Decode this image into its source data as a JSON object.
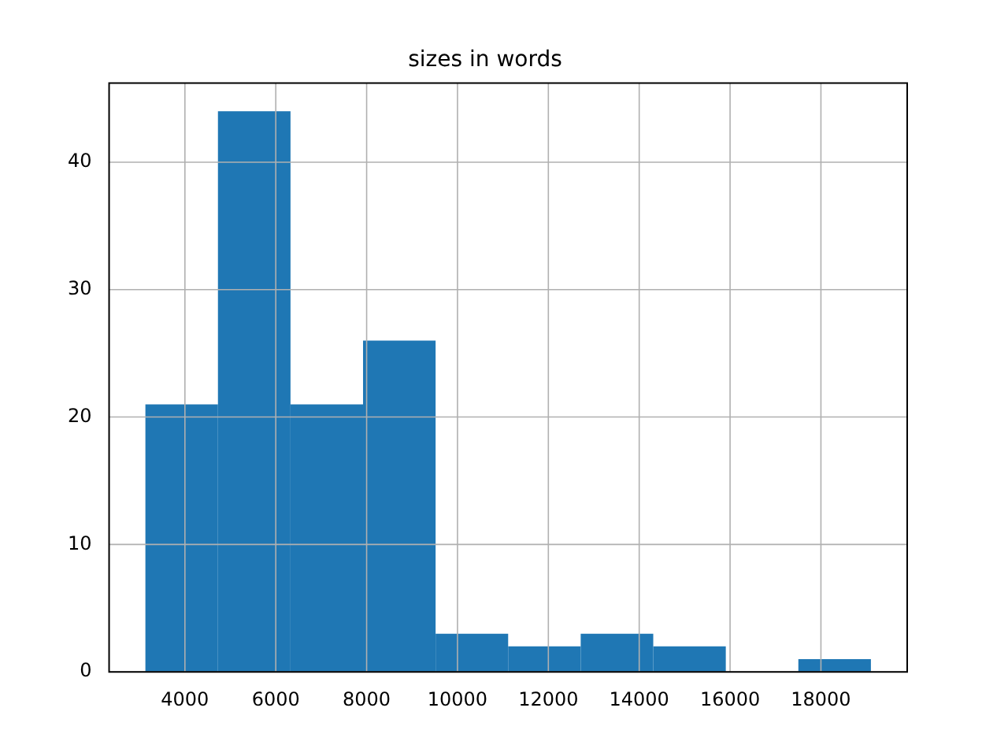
{
  "chart_data": {
    "type": "histogram",
    "title": "sizes in words",
    "bins": [
      3130,
      4727,
      6324,
      7921,
      9518,
      11115,
      12712,
      14309,
      15906,
      17503,
      19100
    ],
    "values": [
      21,
      44,
      21,
      26,
      3,
      2,
      3,
      2,
      0,
      1
    ],
    "color": "#1f77b4",
    "xlim": [
      2331,
      19899
    ],
    "xticks": [
      4000,
      6000,
      8000,
      10000,
      12000,
      14000,
      16000,
      18000
    ],
    "ylim": [
      0,
      46.2
    ],
    "yticks": [
      0,
      10,
      20,
      30,
      40
    ],
    "grid": true
  }
}
